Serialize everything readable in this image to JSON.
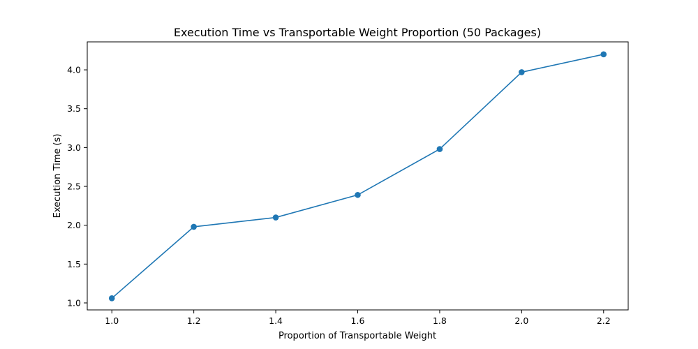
{
  "chart_data": {
    "type": "line",
    "title": "Execution Time vs Transportable Weight Proportion (50 Packages)",
    "xlabel": "Proportion of Transportable Weight",
    "ylabel": "Execution Time (s)",
    "x": [
      1.0,
      1.2,
      1.4,
      1.6,
      1.8,
      2.0,
      2.2
    ],
    "series": [
      {
        "values": [
          1.06,
          1.98,
          2.1,
          2.39,
          2.98,
          3.97,
          4.2
        ]
      }
    ],
    "xlim": [
      0.94,
      2.26
    ],
    "ylim": [
      0.91,
      4.36
    ],
    "xticks": [
      1.0,
      1.2,
      1.4,
      1.6,
      1.8,
      2.0,
      2.2
    ],
    "xtick_labels": [
      "1.0",
      "1.2",
      "1.4",
      "1.6",
      "1.8",
      "2.0",
      "2.2"
    ],
    "yticks": [
      1.0,
      1.5,
      2.0,
      2.5,
      3.0,
      3.5,
      4.0
    ],
    "ytick_labels": [
      "1.0",
      "1.5",
      "2.0",
      "2.5",
      "3.0",
      "3.5",
      "4.0"
    ],
    "grid": false,
    "markers": true,
    "line_color": "#1f77b4"
  }
}
